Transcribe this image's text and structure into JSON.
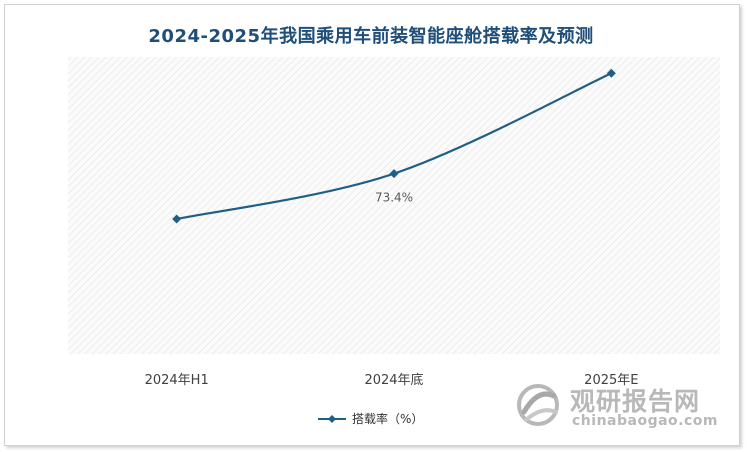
{
  "chart_data": {
    "type": "line",
    "title": "2024-2025年我国乘用车前装智能座舱搭载率及预测",
    "categories": [
      "2024年H1",
      "2024年底",
      "2025年E"
    ],
    "series": [
      {
        "name": "搭载率（%）",
        "values": [
          65.0,
          73.4,
          92.0
        ],
        "data_labels": [
          "",
          "73.4%",
          ""
        ],
        "color": "#1f5f86"
      }
    ],
    "ylim": [
      40,
      95
    ],
    "yaxis_visible": false,
    "grid": false,
    "plot_background": "hatched light gray",
    "legend_position": "bottom-center",
    "xlabel": "",
    "ylabel": ""
  },
  "watermark": {
    "name": "观研报告网",
    "url": "chinabaogao.com"
  }
}
